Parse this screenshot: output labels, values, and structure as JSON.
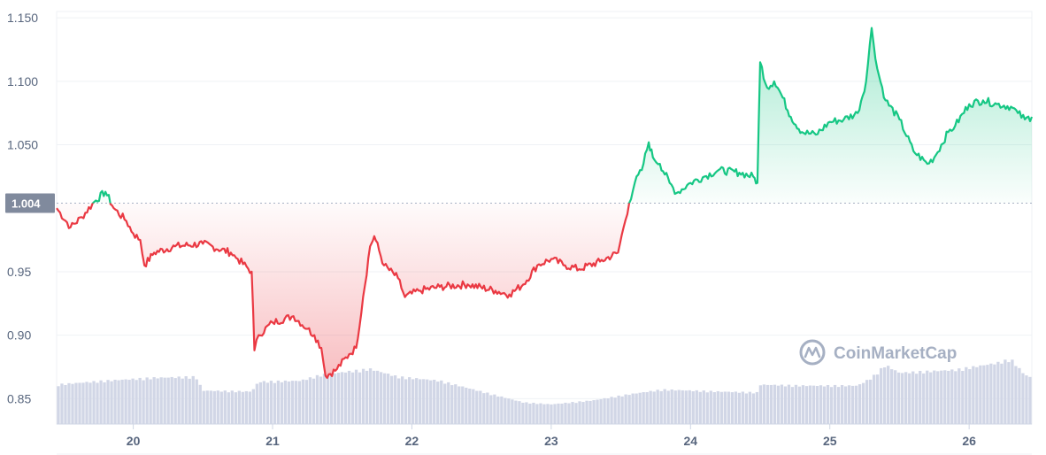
{
  "chart_data": {
    "type": "line",
    "title": "",
    "xlabel": "",
    "ylabel": "",
    "x_domain": [
      19.45,
      26.45
    ],
    "ylim": [
      0.83,
      1.155
    ],
    "yticks": [
      "0.85",
      "0.90",
      "0.95",
      "1.050",
      "1.100",
      "1.150"
    ],
    "xticks": [
      "20",
      "21",
      "22",
      "23",
      "24",
      "25",
      "26"
    ],
    "reference_value": 1.004,
    "reference_label": "1.004",
    "colors": {
      "up": "#16c784",
      "down": "#ea3943",
      "volume": "#d1d6e6",
      "grid": "#eff2f5",
      "label_bg": "#808a9d"
    },
    "grid": true,
    "watermark": "CoinMarketCap",
    "series": [
      {
        "values": [
          [
            19.45,
            1.0
          ],
          [
            19.55,
            0.985
          ],
          [
            19.63,
            0.993
          ],
          [
            19.72,
            1.005
          ],
          [
            19.8,
            1.013
          ],
          [
            19.86,
            1.0
          ],
          [
            19.95,
            0.99
          ],
          [
            20.0,
            0.98
          ],
          [
            20.05,
            0.975
          ],
          [
            20.08,
            0.955
          ],
          [
            20.15,
            0.965
          ],
          [
            20.3,
            0.97
          ],
          [
            20.5,
            0.972
          ],
          [
            20.7,
            0.965
          ],
          [
            20.75,
            0.96
          ],
          [
            20.85,
            0.95
          ],
          [
            20.87,
            0.888
          ],
          [
            20.9,
            0.9
          ],
          [
            21.0,
            0.91
          ],
          [
            21.15,
            0.915
          ],
          [
            21.25,
            0.905
          ],
          [
            21.3,
            0.9
          ],
          [
            21.35,
            0.89
          ],
          [
            21.38,
            0.868
          ],
          [
            21.45,
            0.872
          ],
          [
            21.55,
            0.885
          ],
          [
            21.6,
            0.89
          ],
          [
            21.65,
            0.93
          ],
          [
            21.7,
            0.97
          ],
          [
            21.73,
            0.978
          ],
          [
            21.8,
            0.955
          ],
          [
            21.9,
            0.945
          ],
          [
            21.95,
            0.93
          ],
          [
            22.05,
            0.935
          ],
          [
            22.2,
            0.938
          ],
          [
            22.4,
            0.94
          ],
          [
            22.6,
            0.935
          ],
          [
            22.7,
            0.932
          ],
          [
            22.8,
            0.94
          ],
          [
            22.9,
            0.955
          ],
          [
            23.0,
            0.96
          ],
          [
            23.1,
            0.955
          ],
          [
            23.2,
            0.952
          ],
          [
            23.35,
            0.958
          ],
          [
            23.48,
            0.965
          ],
          [
            23.52,
            0.985
          ],
          [
            23.56,
            1.004
          ],
          [
            23.6,
            1.02
          ],
          [
            23.65,
            1.03
          ],
          [
            23.7,
            1.052
          ],
          [
            23.73,
            1.04
          ],
          [
            23.78,
            1.035
          ],
          [
            23.85,
            1.02
          ],
          [
            23.9,
            1.012
          ],
          [
            24.0,
            1.02
          ],
          [
            24.1,
            1.025
          ],
          [
            24.2,
            1.03
          ],
          [
            24.35,
            1.028
          ],
          [
            24.45,
            1.025
          ],
          [
            24.48,
            1.02
          ],
          [
            24.5,
            1.115
          ],
          [
            24.55,
            1.095
          ],
          [
            24.6,
            1.1
          ],
          [
            24.65,
            1.09
          ],
          [
            24.72,
            1.072
          ],
          [
            24.8,
            1.06
          ],
          [
            24.9,
            1.058
          ],
          [
            25.0,
            1.068
          ],
          [
            25.1,
            1.07
          ],
          [
            25.2,
            1.075
          ],
          [
            25.26,
            1.1
          ],
          [
            25.3,
            1.142
          ],
          [
            25.34,
            1.11
          ],
          [
            25.4,
            1.085
          ],
          [
            25.5,
            1.07
          ],
          [
            25.6,
            1.045
          ],
          [
            25.7,
            1.035
          ],
          [
            25.75,
            1.04
          ],
          [
            25.85,
            1.06
          ],
          [
            25.9,
            1.065
          ],
          [
            26.0,
            1.082
          ],
          [
            26.1,
            1.085
          ],
          [
            26.2,
            1.082
          ],
          [
            26.3,
            1.08
          ],
          [
            26.35,
            1.075
          ],
          [
            26.4,
            1.07
          ],
          [
            26.45,
            1.072
          ]
        ]
      }
    ],
    "volume": [
      [
        19.45,
        0.4
      ],
      [
        19.8,
        0.44
      ],
      [
        20.15,
        0.47
      ],
      [
        20.45,
        0.48
      ],
      [
        20.5,
        0.34
      ],
      [
        20.85,
        0.33
      ],
      [
        20.9,
        0.43
      ],
      [
        21.2,
        0.44
      ],
      [
        21.35,
        0.5
      ],
      [
        21.7,
        0.56
      ],
      [
        21.9,
        0.48
      ],
      [
        22.2,
        0.44
      ],
      [
        22.5,
        0.33
      ],
      [
        22.8,
        0.22
      ],
      [
        23.0,
        0.2
      ],
      [
        23.3,
        0.24
      ],
      [
        23.55,
        0.3
      ],
      [
        23.8,
        0.35
      ],
      [
        24.2,
        0.33
      ],
      [
        24.48,
        0.32
      ],
      [
        24.5,
        0.4
      ],
      [
        24.8,
        0.39
      ],
      [
        25.2,
        0.39
      ],
      [
        25.3,
        0.47
      ],
      [
        25.4,
        0.6
      ],
      [
        25.5,
        0.52
      ],
      [
        25.9,
        0.55
      ],
      [
        26.2,
        0.62
      ],
      [
        26.3,
        0.66
      ],
      [
        26.4,
        0.5
      ],
      [
        26.45,
        0.47
      ]
    ]
  }
}
